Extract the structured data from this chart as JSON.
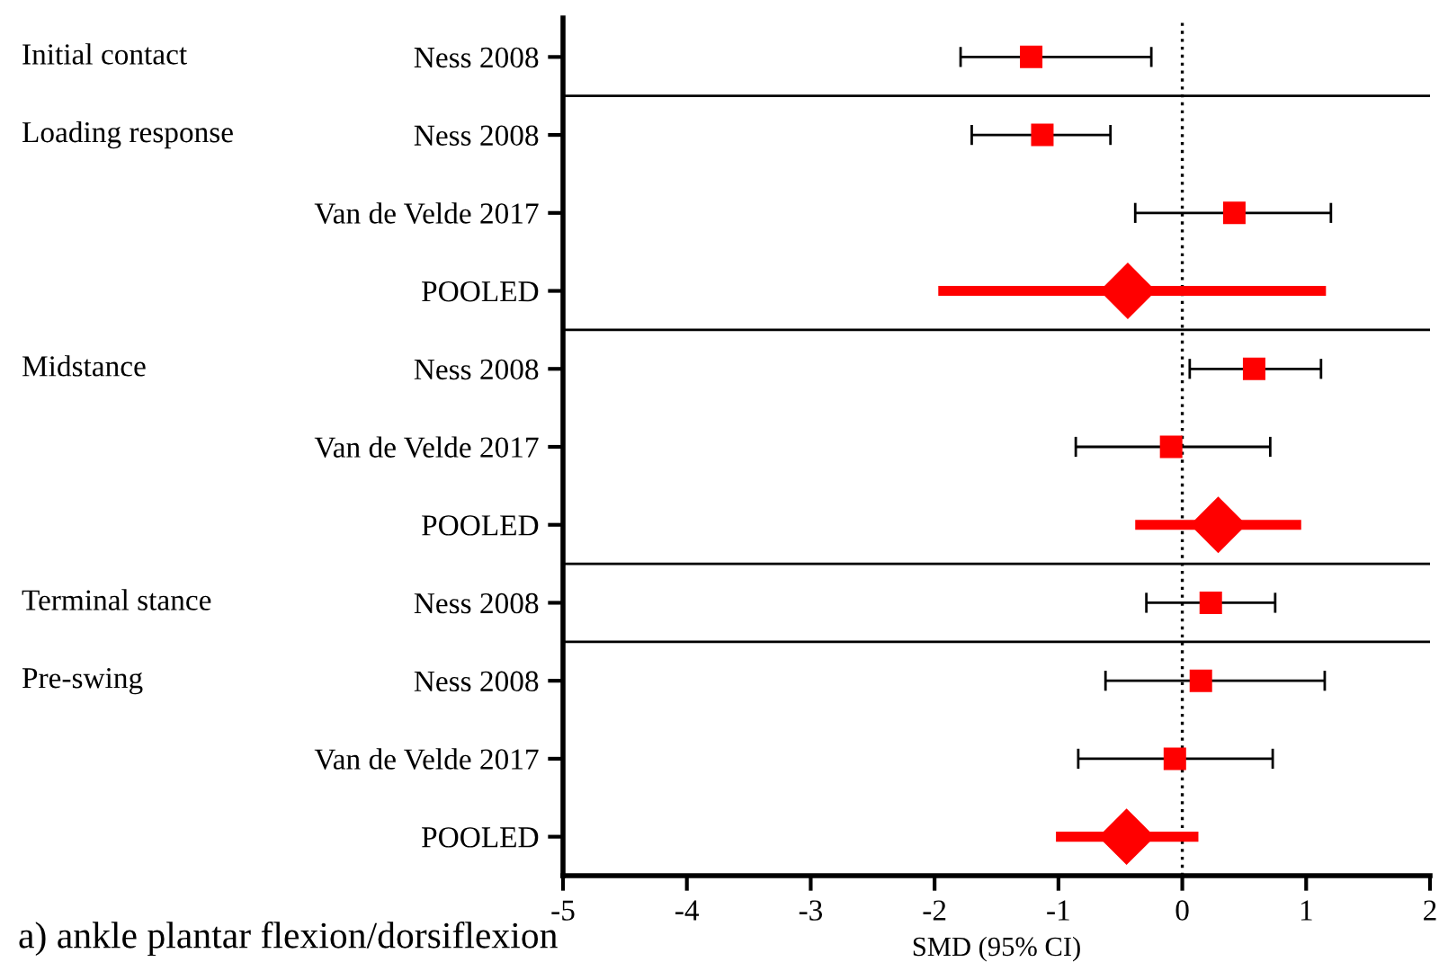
{
  "chart_data": {
    "type": "scatter",
    "orientation": "horizontal",
    "title": "a) ankle plantar flexion/dorsiflexion",
    "xlabel": "SMD (95% CI)",
    "categories": [
      "Ness 2008",
      "Ness 2008",
      "Van de Velde 2017",
      "POOLED",
      "Ness 2008",
      "Van de Velde 2017",
      "POOLED",
      "Ness 2008",
      "Ness 2008",
      "Van de Velde 2017",
      "POOLED"
    ],
    "series": [
      {
        "marker": "square",
        "color": "#ff0000",
        "values": [
          -1.22,
          -1.13,
          0.42,
          null,
          0.58,
          -0.09,
          null,
          0.23,
          0.15,
          -0.06,
          null
        ],
        "errors": [
          [
            -1.79,
            -0.25
          ],
          [
            -1.7,
            -0.58
          ],
          [
            -0.38,
            1.2
          ],
          null,
          [
            0.06,
            1.12
          ],
          [
            -0.86,
            0.71
          ],
          null,
          [
            -0.29,
            0.75
          ],
          [
            -0.62,
            1.15
          ],
          [
            -0.84,
            0.73
          ],
          null
        ]
      },
      {
        "marker": "diamond",
        "color": "#ff0000",
        "values": [
          null,
          null,
          null,
          -0.44,
          null,
          null,
          0.29,
          null,
          null,
          null,
          -0.45
        ],
        "errors": [
          null,
          null,
          null,
          [
            -1.97,
            1.16
          ],
          null,
          null,
          [
            -0.38,
            0.96
          ],
          null,
          null,
          null,
          [
            -1.02,
            0.13
          ]
        ]
      }
    ],
    "xlim": [
      -5,
      2
    ],
    "xticks": [
      -5,
      -4,
      -3,
      -2,
      -1,
      0,
      1,
      2
    ],
    "ref_lines": [
      {
        "axis": "x",
        "value": 0,
        "line_style": "dotted"
      }
    ],
    "y2_categories": [
      "Initial contact",
      "Loading response",
      null,
      null,
      "Midstance",
      null,
      null,
      "Terminal stance",
      "Pre-swing",
      null,
      null
    ],
    "grid": false,
    "legend": false
  }
}
